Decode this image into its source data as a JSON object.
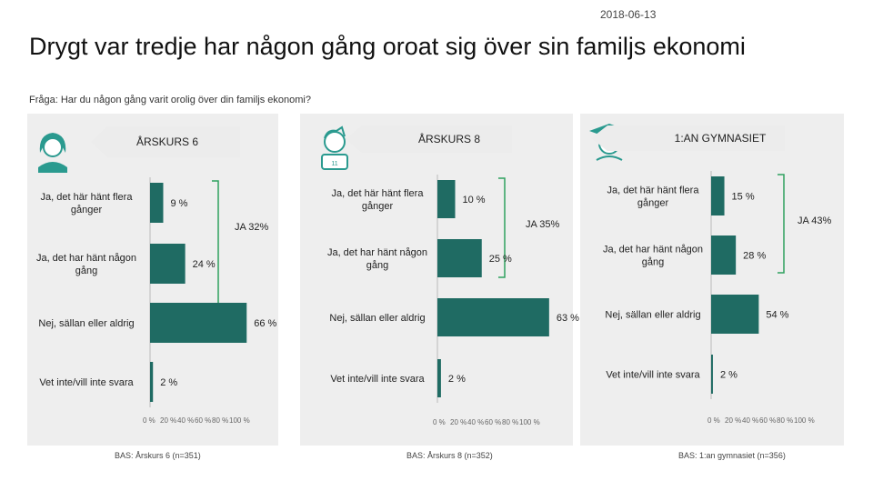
{
  "date": "2018-06-13",
  "title": "Drygt var tredje har någon gång oroat sig över sin familjs ekonomi",
  "question": "Fråga:  Har du någon gång varit orolig över din familjs ekonomi?",
  "colors": {
    "bar": "#1f6b63",
    "panel": "#eeeeee",
    "banner": "#ececec",
    "bracket": "#2fa05f",
    "icon": "#2a9a8f"
  },
  "icons": [
    "girl-icon",
    "boy-icon",
    "student-icon"
  ],
  "chart_data": [
    {
      "type": "bar",
      "orientation": "horizontal",
      "title": "ÅRSKURS 6",
      "categories": [
        "Ja, det här hänt flera gånger",
        "Ja, det har hänt någon gång",
        "Nej, sällan eller aldrig",
        "Vet inte/vill inte svara"
      ],
      "values": [
        9,
        24,
        66,
        2
      ],
      "value_labels": [
        "9 %",
        "24 %",
        "66 %",
        "2 %"
      ],
      "group_label": "JA 32%",
      "xlim": [
        0,
        100
      ],
      "tick_labels": [
        "0 %",
        "20 %",
        "40 %",
        "60 %",
        "80 %",
        "100 %"
      ],
      "base": "BAS: Årskurs 6 (n=351)"
    },
    {
      "type": "bar",
      "orientation": "horizontal",
      "title": "ÅRSKURS 8",
      "categories": [
        "Ja, det här hänt flera gånger",
        "Ja, det har hänt någon gång",
        "Nej, sällan eller aldrig",
        "Vet inte/vill inte svara"
      ],
      "values": [
        10,
        25,
        63,
        2
      ],
      "value_labels": [
        "10 %",
        "25 %",
        "63 %",
        "2 %"
      ],
      "group_label": "JA 35%",
      "xlim": [
        0,
        100
      ],
      "tick_labels": [
        "0 %",
        "20 %",
        "40 %",
        "60 %",
        "80 %",
        "100 %"
      ],
      "base": "BAS: Årskurs 8 (n=352)"
    },
    {
      "type": "bar",
      "orientation": "horizontal",
      "title": "1:AN GYMNASIET",
      "categories": [
        "Ja, det här hänt flera gånger",
        "Ja, det har hänt någon gång",
        "Nej, sällan eller aldrig",
        "Vet inte/vill inte svara"
      ],
      "values": [
        15,
        28,
        54,
        2
      ],
      "value_labels": [
        "15 %",
        "28 %",
        "54 %",
        "2 %"
      ],
      "group_label": "JA 43%",
      "xlim": [
        0,
        100
      ],
      "tick_labels": [
        "0 %",
        "20 %",
        "40 %",
        "60 %",
        "80 %",
        "100 %"
      ],
      "base": "BAS: 1:an gymnasiet (n=356)"
    }
  ]
}
